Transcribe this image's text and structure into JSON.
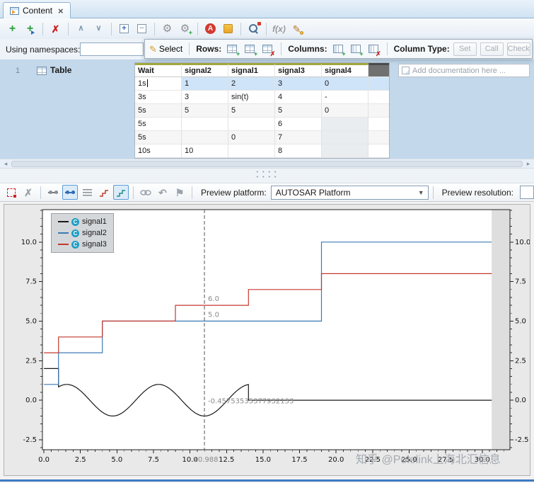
{
  "tab_bar": {
    "tabs": [
      {
        "label": "Content",
        "active": true
      }
    ]
  },
  "toolbar": {
    "fx_label": "f(x)",
    "buttons": [
      "add",
      "insert",
      "delete",
      "move-up",
      "move-down",
      "expand-all",
      "collapse-all",
      "settings",
      "settings-add",
      "a-marker",
      "note",
      "find-replace",
      "fx",
      "format-pencil"
    ]
  },
  "namespaces": {
    "label": "Using namespaces:",
    "value": ""
  },
  "edit_panel": {
    "select_label": "Select",
    "rows_label": "Rows:",
    "columns_label": "Columns:",
    "column_type_label": "Column Type:",
    "column_type_buttons": [
      {
        "label": "Set",
        "enabled": false
      },
      {
        "label": "Call",
        "enabled": false
      },
      {
        "label": "Check",
        "enabled": false
      }
    ]
  },
  "editor": {
    "row_number": "1",
    "block_label": "Table",
    "doc_placeholder": "Add documentation here ...",
    "table": {
      "columns": [
        "Wait",
        "signal2",
        "signal1",
        "signal3",
        "signal4"
      ],
      "rows": [
        [
          "1s",
          "1",
          "2",
          "3",
          "0"
        ],
        [
          "3s",
          "3",
          "sin(t)",
          "4",
          "-"
        ],
        [
          "5s",
          "5",
          "5",
          "5",
          "0"
        ],
        [
          "5s",
          "",
          "",
          "6",
          ""
        ],
        [
          "5s",
          "",
          "0",
          "7",
          ""
        ],
        [
          "10s",
          "10",
          "",
          "8",
          ""
        ]
      ],
      "selected_row": 0,
      "editing_cell": {
        "row": 0,
        "col": 0
      }
    }
  },
  "preview_bar": {
    "platform_label": "Preview platform:",
    "platform_value": "AUTOSAR Platform",
    "resolution_label": "Preview resolution:",
    "resolution_value": ""
  },
  "chart_data": {
    "type": "line",
    "title": "",
    "xlabel": "",
    "ylabel": "",
    "xlim": [
      -0.1,
      31.9
    ],
    "ylim": [
      -3.13,
      12.05
    ],
    "x_ticks": [
      0,
      2.5,
      5,
      7.5,
      10,
      12.5,
      15,
      17.5,
      20,
      22.5,
      25,
      27.5,
      30
    ],
    "y_ticks": [
      -2.5,
      0,
      2.5,
      5,
      7.5,
      10
    ],
    "minor_step": 0.5,
    "grid": false,
    "legend_position": "top-left",
    "preview_end": 30.65,
    "cursor": {
      "x": 10.988,
      "label": "10.988",
      "values": [
        {
          "v": 6.0,
          "label": "6.0"
        },
        {
          "v": 5.0,
          "label": "5.0"
        },
        {
          "v": -0.4575353537793213,
          "label": "-0.45753535377932133"
        }
      ]
    },
    "series": [
      {
        "name": "signal1",
        "color": "#1a1a1a",
        "segments": [
          [
            0,
            1,
            2
          ],
          [
            14,
            30.65,
            0
          ]
        ],
        "sine": {
          "start": 1,
          "end": 14,
          "amplitude": 1,
          "label": "sin(t)"
        }
      },
      {
        "name": "signal2",
        "color": "#3d7ab5",
        "segments": [
          [
            0,
            1,
            1
          ],
          [
            1,
            4,
            3
          ],
          [
            4,
            19,
            5
          ],
          [
            19,
            30.65,
            10
          ]
        ]
      },
      {
        "name": "signal3",
        "color": "#c23a2e",
        "segments": [
          [
            0,
            1,
            3
          ],
          [
            1,
            4,
            4
          ],
          [
            4,
            9,
            5
          ],
          [
            9,
            14,
            6
          ],
          [
            14,
            19,
            7
          ],
          [
            19,
            30.65,
            8
          ]
        ]
      }
    ]
  },
  "watermark": "知乎 @Polelink上海北汇信息",
  "icons": {
    "plus": "+",
    "delete": "✗",
    "chevron_up": "∧",
    "chevron_down": "∨",
    "expand": "+",
    "collapse": "−",
    "gear": "⚙",
    "a_badge": "A",
    "pencil": "✎",
    "undo": "↶",
    "flag": "⚑",
    "close": "×",
    "dropdown_arrow": "▼",
    "scroll_left": "◂",
    "scroll_right": "▸",
    "dots": "• • • •",
    "badge_c": "C"
  },
  "colors": {
    "tab_bg": "#d8e7f4",
    "editor_bg": "#c3d8ea",
    "selection": "#cfe4f8",
    "header_accent": "#a3a93c",
    "chart_panel_bg": "#e9e9e9",
    "chart_offscreen_band": "#dedede",
    "signal1": "#1a1a1a",
    "signal2": "#3d7ab5",
    "signal3": "#c23a2e",
    "window_edge": "#3e79c2"
  }
}
